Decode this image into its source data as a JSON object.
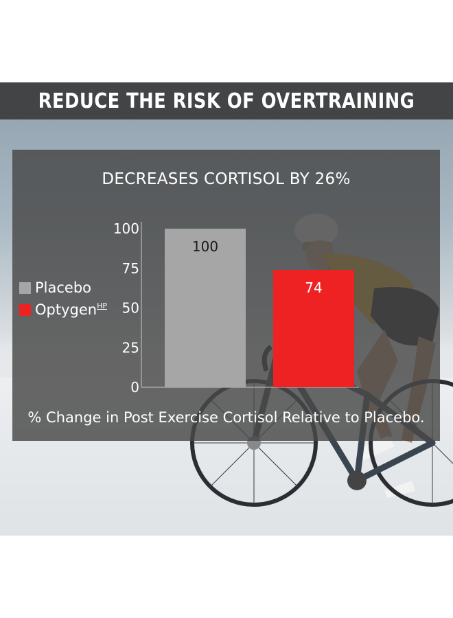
{
  "banner": {
    "title": "REDUCE THE RISK OF OVERTRAINING"
  },
  "colors": {
    "placebo": "#a6a6a6",
    "optygen": "#ee2222",
    "panel": "#4a4a4a"
  },
  "chart_data": {
    "type": "bar",
    "title": "DECREASES CORTISOL BY 26%",
    "caption": "% Change in Post Exercise Cortisol Relative to Placebo.",
    "categories": [
      "Placebo",
      "Optygen"
    ],
    "series": [
      {
        "name": "Placebo",
        "value": 100,
        "label": "100",
        "color": "#a6a6a6"
      },
      {
        "name": "Optygen",
        "value": 74,
        "label": "74",
        "color": "#ee2222"
      }
    ],
    "legend": [
      {
        "name": "Placebo",
        "superscript": ""
      },
      {
        "name": "Optygen",
        "superscript": "HP"
      }
    ],
    "yticks": [
      "0",
      "25",
      "50",
      "75",
      "100"
    ],
    "ylim": [
      0,
      100
    ],
    "grid": false,
    "legend_position": "left"
  }
}
